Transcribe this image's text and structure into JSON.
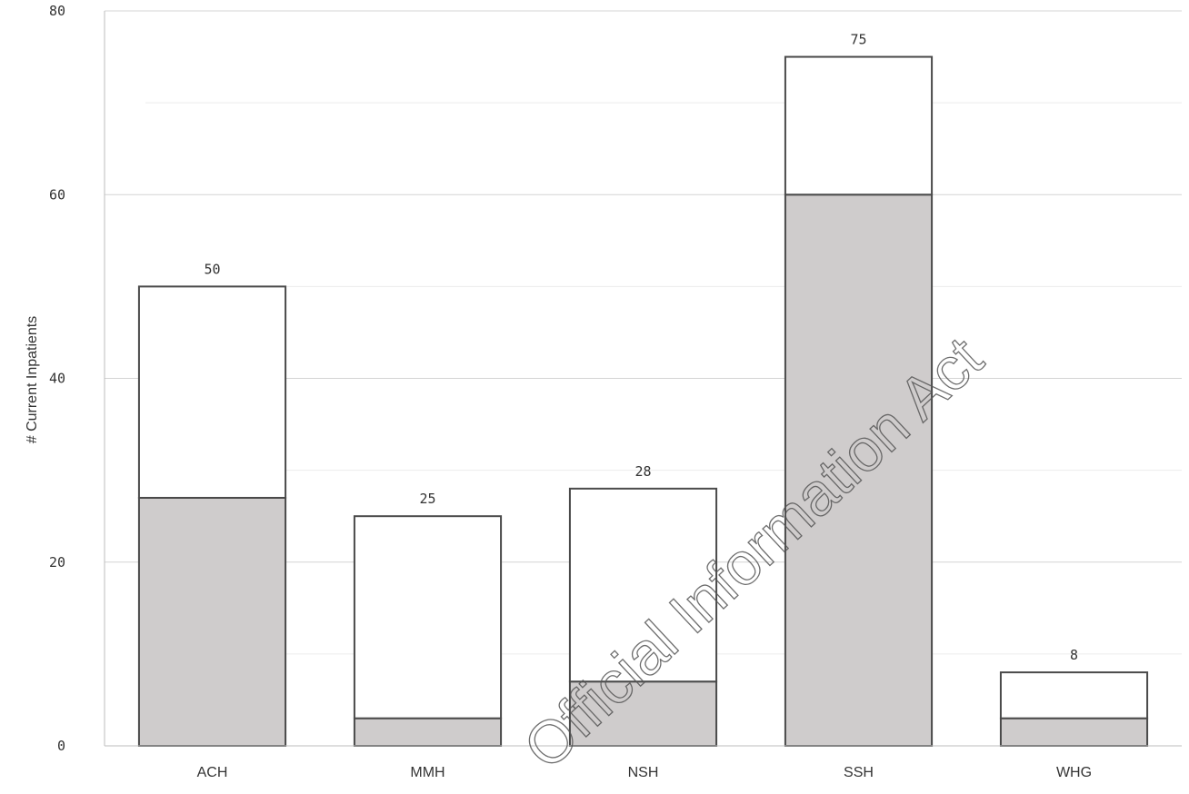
{
  "chart_data": {
    "type": "bar",
    "stacked": true,
    "categories": [
      "ACH",
      "MMH",
      "NSH",
      "SSH",
      "WHG"
    ],
    "series": [
      {
        "values": [
          27,
          3,
          7,
          60,
          3
        ],
        "color": "#cfcccc"
      },
      {
        "values": [
          23,
          22,
          21,
          15,
          5
        ],
        "color": "#ffffff"
      }
    ],
    "totals": [
      50,
      25,
      28,
      75,
      8
    ],
    "total_labels": [
      "50",
      "25",
      "28",
      "75",
      "8"
    ],
    "ylabel": "# Current Inpatients",
    "yticks": [
      0,
      20,
      40,
      60,
      80
    ],
    "ytick_labels": [
      "0",
      "20",
      "40",
      "60",
      "80"
    ],
    "ylim": [
      0,
      80
    ],
    "grid": true
  },
  "watermark": {
    "text": "Official Information Act"
  }
}
